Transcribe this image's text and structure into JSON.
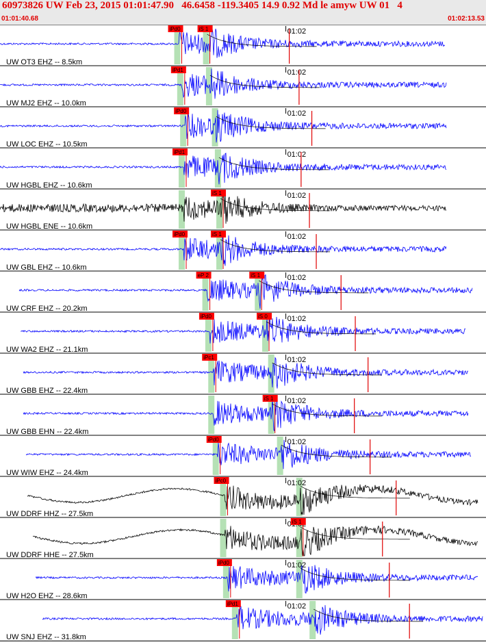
{
  "header": {
    "title": "60973826 UW Feb 23, 2015 01:01:47.90   46.6458 -119.3405 14.9 0.92 Md le amyw UW 01   4",
    "start_time": "01:01:40.68",
    "end_time": "01:02:13.53"
  },
  "colors": {
    "header_bg": "#e9e9e9",
    "header_text": "#e00000",
    "trace_blue": "#0000ff",
    "trace_black": "#000000",
    "pick_box": "#ff0000",
    "pick_line": "#e00000",
    "window_band": "#a8dca8",
    "coda_curve": "#000000"
  },
  "chart_data": {
    "type": "seismogram",
    "time_range": [
      "01:01:40.68",
      "01:02:13.53"
    ],
    "minute_tick_label": "01:02",
    "minute_tick_time": "01:02:00",
    "traces": [
      {
        "label": "UW OT3 EHZ -- 8.5km",
        "color": "blue",
        "p_pick": "iPd0",
        "s_pick": "iS 1",
        "p_time": 12.1,
        "s_time": 14.0
      },
      {
        "label": "UW MJ2 EHZ -- 10.0km",
        "color": "blue",
        "p_pick": "iPd1",
        "s_pick": "",
        "p_time": 12.3,
        "s_time": 14.2
      },
      {
        "label": "UW LOC EHZ -- 10.5km",
        "color": "blue",
        "p_pick": "iPd0",
        "s_pick": "",
        "p_time": 12.5,
        "s_time": 14.6
      },
      {
        "label": "UW HGBL EHZ -- 10.6km",
        "color": "blue",
        "p_pick": "iPd1",
        "s_pick": "",
        "p_time": 12.4,
        "s_time": 14.8
      },
      {
        "label": "UW HGBL ENE -- 10.6km",
        "color": "black",
        "p_pick": "",
        "s_pick": "iS 1",
        "p_time": 12.4,
        "s_time": 14.9
      },
      {
        "label": "UW GBL EHZ -- 10.6km",
        "color": "blue",
        "p_pick": "iPd0",
        "s_pick": "iS 1",
        "p_time": 12.4,
        "s_time": 14.9
      },
      {
        "label": "UW CRF EHZ -- 20.2km",
        "color": "blue",
        "p_pick": "eP 2",
        "s_pick": "iS 1",
        "p_time": 14.0,
        "s_time": 17.5
      },
      {
        "label": "UW WA2 EHZ -- 21.1km",
        "color": "blue",
        "p_pick": "iPd0",
        "s_pick": "iS 0",
        "p_time": 14.2,
        "s_time": 18.0
      },
      {
        "label": "UW GBB EHZ -- 22.4km",
        "color": "blue",
        "p_pick": "iPc1",
        "s_pick": "",
        "p_time": 14.4,
        "s_time": 18.4
      },
      {
        "label": "UW GBB EHN -- 22.4km",
        "color": "blue",
        "p_pick": "",
        "s_pick": "iS 1",
        "p_time": 14.4,
        "s_time": 18.4
      },
      {
        "label": "UW WIW EHZ -- 24.4km",
        "color": "blue",
        "p_pick": "iPd0",
        "s_pick": "",
        "p_time": 14.7,
        "s_time": 19.0
      },
      {
        "label": "UW DDRF HHZ -- 27.5km",
        "color": "black",
        "p_pick": "iPc0",
        "s_pick": "",
        "p_time": 15.2,
        "s_time": 20.3
      },
      {
        "label": "UW DDRF HHE -- 27.5km",
        "color": "black",
        "p_pick": "",
        "s_pick": "iS 1",
        "p_time": 15.2,
        "s_time": 20.3
      },
      {
        "label": "UW H2O EHZ -- 28.6km",
        "color": "blue",
        "p_pick": "iPd0",
        "s_pick": "",
        "p_time": 15.4,
        "s_time": 20.3
      },
      {
        "label": "UW SNJ EHZ -- 31.8km",
        "color": "blue",
        "p_pick": "iPd1",
        "s_pick": "",
        "p_time": 16.0,
        "s_time": 21.2
      }
    ]
  }
}
